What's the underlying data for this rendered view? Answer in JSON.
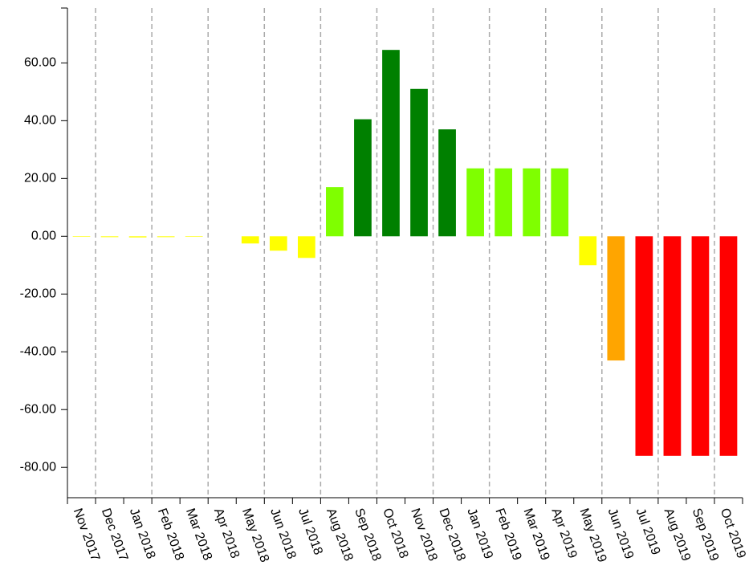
{
  "chart_data": {
    "type": "bar",
    "categories": [
      "Nov 2017",
      "Dec 2017",
      "Jan 2018",
      "Feb 2018",
      "Mar 2018",
      "Apr 2018",
      "May 2018",
      "Jun 2018",
      "Jul 2018",
      "Aug 2018",
      "Sep 2018",
      "Oct 2018",
      "Nov 2018",
      "Dec 2018",
      "Jan 2019",
      "Feb 2019",
      "Mar 2019",
      "Apr 2019",
      "May 2019",
      "Jun 2019",
      "Jul 2019",
      "Aug 2019",
      "Sep 2019",
      "Oct 2019"
    ],
    "values": [
      -0.2,
      -0.3,
      -0.4,
      -0.3,
      -0.2,
      0,
      -2.5,
      -5,
      -7.5,
      17,
      40.5,
      64.5,
      51,
      37,
      23.5,
      23.5,
      23.5,
      23.5,
      -10,
      -43,
      -76,
      -76,
      -76,
      -76
    ],
    "colors": [
      "#ffff00",
      "#ffff00",
      "#ffff00",
      "#ffff00",
      "#ffff00",
      "#ffff00",
      "#ffff00",
      "#ffff00",
      "#ffff00",
      "#7fff00",
      "#008000",
      "#008000",
      "#008000",
      "#008000",
      "#7fff00",
      "#7fff00",
      "#7fff00",
      "#7fff00",
      "#ffff00",
      "#ffa500",
      "#ff0000",
      "#ff0000",
      "#ff0000",
      "#ff0000"
    ],
    "ylim": [
      -90.5,
      79
    ],
    "yticks": [
      {
        "value": -80,
        "label": "-80.00"
      },
      {
        "value": -60,
        "label": "-60.00"
      },
      {
        "value": -40,
        "label": "-40.00"
      },
      {
        "value": -20,
        "label": "-20.00"
      },
      {
        "value": 0,
        "label": "0.00"
      },
      {
        "value": 20,
        "label": "20.00"
      },
      {
        "value": 40,
        "label": "40.00"
      },
      {
        "value": 60,
        "label": "60.00"
      }
    ],
    "grid": true
  }
}
